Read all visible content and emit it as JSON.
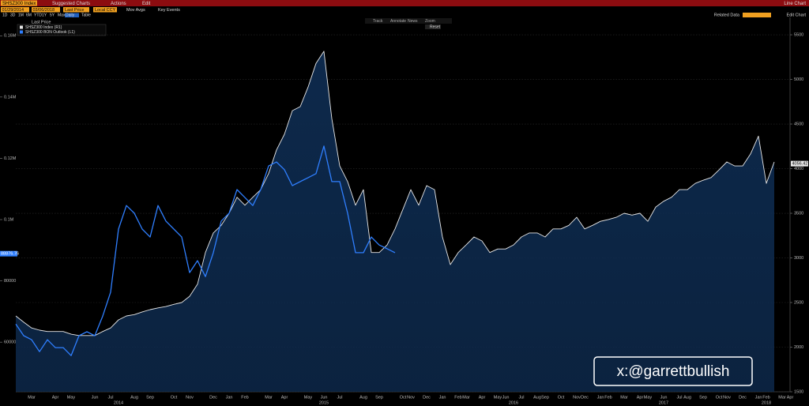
{
  "top_bar": {
    "ticker": "SHSZ300 Index",
    "menus": [
      "Suggested Charts",
      "Actions",
      "Edit"
    ],
    "title": "Line Chart"
  },
  "settings_bar": {
    "start_date": "01/29/2014",
    "end_date": "03/06/2018",
    "field": "Last Price",
    "currency": "Local CCY",
    "options": [
      "Mov Avgs",
      "Key Events"
    ]
  },
  "period_bar": [
    "1D",
    "3D",
    "1M",
    "6M",
    "YTD",
    "1Y",
    "5Y",
    "Max",
    "Daily",
    "Table"
  ],
  "chart_tools": [
    "Track",
    "Annotate",
    "News",
    "Zoom",
    "Reset"
  ],
  "right_tools": [
    "Related Data",
    "Edit Chart"
  ],
  "watermark": "x:@garrettbullish",
  "chart_data": {
    "type": "line",
    "legend_title": "Last Price",
    "categories": [
      null,
      null,
      "Mar",
      null,
      null,
      "Apr",
      null,
      "May",
      null,
      null,
      "Jun",
      null,
      "Jul",
      null,
      null,
      "Aug",
      null,
      "Sep",
      null,
      null,
      "Oct",
      null,
      "Nov",
      null,
      null,
      "Dec",
      null,
      "Jan",
      null,
      "Feb",
      null,
      null,
      "Mar",
      null,
      "Apr",
      null,
      null,
      "May",
      null,
      "Jun",
      null,
      "Jul",
      null,
      null,
      "Aug",
      null,
      "Sep",
      null,
      null,
      "Oct",
      "Nov",
      null,
      "Dec",
      null,
      "Jan",
      null,
      "Feb",
      "Mar",
      null,
      "Apr",
      null,
      "May",
      "Jun",
      null,
      "Jul",
      null,
      "Aug",
      "Sep",
      null,
      "Oct",
      null,
      "Nov",
      "Dec",
      null,
      "Jan",
      "Feb",
      null,
      "Mar",
      null,
      "Apr",
      "May",
      null,
      "Jun",
      null,
      "Jul",
      "Aug",
      null,
      "Sep",
      null,
      "Oct",
      "Nov",
      null,
      "Dec",
      null,
      "Jan",
      "Feb",
      null,
      "Mar",
      "Apr"
    ],
    "years": [
      null,
      null,
      null,
      null,
      null,
      null,
      null,
      null,
      null,
      null,
      null,
      null,
      null,
      "2014",
      null,
      null,
      null,
      null,
      null,
      null,
      null,
      null,
      null,
      null,
      null,
      null,
      null,
      null,
      null,
      null,
      null,
      null,
      null,
      null,
      null,
      null,
      null,
      null,
      null,
      "2015",
      null,
      null,
      null,
      null,
      null,
      null,
      null,
      null,
      null,
      null,
      null,
      null,
      null,
      null,
      null,
      null,
      null,
      null,
      null,
      null,
      null,
      null,
      null,
      "2016",
      null,
      null,
      null,
      null,
      null,
      null,
      null,
      null,
      null,
      null,
      null,
      null,
      null,
      null,
      null,
      null,
      null,
      null,
      "2017",
      null,
      null,
      null,
      null,
      null,
      null,
      null,
      null,
      null,
      null,
      null,
      null,
      "2018",
      null,
      null,
      null
    ],
    "ylim": [
      43800,
      166000
    ],
    "yticks": [
      60000,
      80000,
      {
        "value": 100000,
        "label": "0.1M"
      },
      {
        "value": 120000,
        "label": "0.12M"
      },
      {
        "value": 140000,
        "label": "0.14M"
      },
      {
        "value": 160000,
        "label": "0.16M"
      }
    ],
    "y2lim": [
      1500,
      5695
    ],
    "y2ticks": [
      1500,
      2000,
      2500,
      3000,
      3500,
      4000,
      4500,
      5000,
      5500
    ],
    "grid": true,
    "area_color": "#0e2b4f",
    "series": [
      {
        "name": "SHSZ300 Index (R1)",
        "color": "#e8e8e8",
        "axis": "y2",
        "area": true,
        "last_price": 4056.42,
        "values": [
          2350,
          2280,
          2215,
          2190,
          2175,
          2175,
          2175,
          2145,
          2130,
          2130,
          2130,
          2175,
          2215,
          2305,
          2350,
          2365,
          2395,
          2420,
          2440,
          2455,
          2480,
          2500,
          2570,
          2705,
          3060,
          3280,
          3365,
          3500,
          3680,
          3590,
          3680,
          3765,
          3945,
          4210,
          4385,
          4650,
          4695,
          4915,
          5180,
          5315,
          4560,
          4030,
          3855,
          3590,
          3765,
          3060,
          3060,
          3145,
          3325,
          3545,
          3765,
          3590,
          3810,
          3765,
          3235,
          2925,
          3060,
          3145,
          3235,
          3190,
          3060,
          3100,
          3100,
          3145,
          3235,
          3280,
          3280,
          3235,
          3325,
          3325,
          3365,
          3455,
          3325,
          3365,
          3410,
          3430,
          3455,
          3500,
          3480,
          3500,
          3410,
          3570,
          3635,
          3680,
          3765,
          3765,
          3835,
          3870,
          3900,
          3985,
          4075,
          4030,
          4030,
          4165,
          4365,
          3835,
          4075,
          null,
          null
        ]
      },
      {
        "name": "SHSZ300 BON Outlook (L1)",
        "color": "#2f7fff",
        "axis": "y",
        "area": false,
        "last_price": 88876.76,
        "values": [
          65900,
          62100,
          60800,
          56900,
          60800,
          58200,
          58200,
          55600,
          62100,
          63400,
          62100,
          68500,
          76300,
          96900,
          104600,
          102100,
          96900,
          94300,
          104600,
          99500,
          96900,
          94300,
          82700,
          86600,
          81400,
          89200,
          99500,
          102100,
          109800,
          107200,
          104600,
          109800,
          117500,
          118800,
          116300,
          111100,
          112400,
          113700,
          115000,
          124000,
          112400,
          112400,
          102100,
          89200,
          89200,
          94300,
          91700,
          90500,
          89200,
          null,
          null,
          null,
          null,
          null,
          null,
          null,
          null,
          null,
          null,
          null,
          null,
          null,
          null,
          null,
          null,
          null,
          null,
          null,
          null,
          null,
          null,
          null,
          null,
          null,
          null,
          null,
          null,
          null,
          null,
          null,
          null,
          null,
          null,
          null,
          null,
          null,
          null,
          null,
          null,
          null,
          null,
          null,
          null,
          null,
          null,
          null,
          null,
          null,
          null
        ]
      }
    ]
  }
}
